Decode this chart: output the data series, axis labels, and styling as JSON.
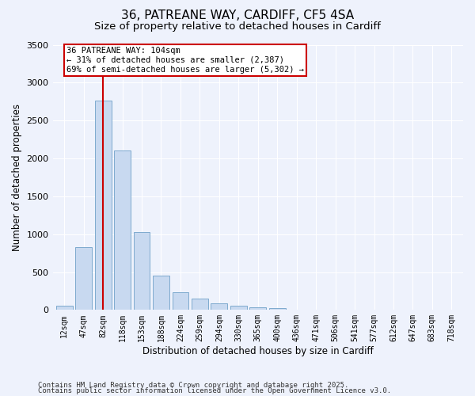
{
  "title_line1": "36, PATREANE WAY, CARDIFF, CF5 4SA",
  "title_line2": "Size of property relative to detached houses in Cardiff",
  "xlabel": "Distribution of detached houses by size in Cardiff",
  "ylabel": "Number of detached properties",
  "categories": [
    "12sqm",
    "47sqm",
    "82sqm",
    "118sqm",
    "153sqm",
    "188sqm",
    "224sqm",
    "259sqm",
    "294sqm",
    "330sqm",
    "365sqm",
    "400sqm",
    "436sqm",
    "471sqm",
    "506sqm",
    "541sqm",
    "577sqm",
    "612sqm",
    "647sqm",
    "683sqm",
    "718sqm"
  ],
  "values": [
    55,
    830,
    2760,
    2100,
    1030,
    450,
    230,
    155,
    90,
    55,
    35,
    20,
    8,
    4,
    2,
    1,
    0,
    0,
    0,
    0,
    0
  ],
  "bar_color": "#c8d9f0",
  "bar_edge_color": "#6fa0c8",
  "vline_x_index": 2,
  "vline_color": "#cc0000",
  "annotation_text": "36 PATREANE WAY: 104sqm\n← 31% of detached houses are smaller (2,387)\n69% of semi-detached houses are larger (5,302) →",
  "annotation_box_color": "#cc0000",
  "annotation_text_color": "#000000",
  "ylim": [
    0,
    3500
  ],
  "yticks": [
    0,
    500,
    1000,
    1500,
    2000,
    2500,
    3000,
    3500
  ],
  "background_color": "#eef2fc",
  "grid_color": "#ffffff",
  "footer_line1": "Contains HM Land Registry data © Crown copyright and database right 2025.",
  "footer_line2": "Contains public sector information licensed under the Open Government Licence v3.0.",
  "title_fontsize": 11,
  "subtitle_fontsize": 9.5,
  "axis_label_fontsize": 8.5,
  "tick_fontsize": 7,
  "annotation_fontsize": 7.5,
  "footer_fontsize": 6.5
}
